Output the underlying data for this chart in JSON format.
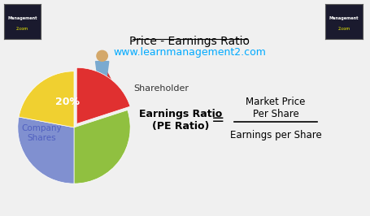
{
  "title": "Price - Earnings Ratio",
  "website": "www.learnmanagement2.com",
  "title_color": "#000000",
  "website_color": "#00AAFF",
  "background_color": "#F0F0F0",
  "pie_slices": [
    0.2,
    0.3,
    0.28,
    0.22
  ],
  "pie_colors": [
    "#E03030",
    "#90C040",
    "#8090D0",
    "#F0D030"
  ],
  "pie_explode": [
    0.08,
    0,
    0,
    0
  ],
  "pie_label_20": "20%",
  "company_label": "Company\nShares",
  "shareholder_label": "Shareholder",
  "earnings_ratio_label": "Earnings Ratio\n(PE Ratio)",
  "equals_sign": "=",
  "numerator": "Market Price\nPer Share",
  "denominator": "Earnings per Share",
  "fraction_line_color": "#000000"
}
